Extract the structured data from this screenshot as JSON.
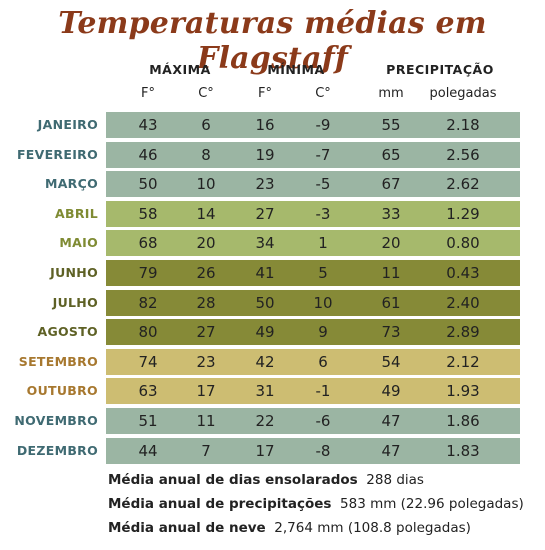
{
  "title": "Temperaturas médias em Flagstaff",
  "headers": {
    "max": "MÁXIMA",
    "min": "MÍNIMA",
    "precip": "PRECIPITAÇÃO",
    "units": [
      "F°",
      "C°",
      "F°",
      "C°",
      "mm",
      "polegadas"
    ]
  },
  "colors": {
    "blue_band": "#9bb5a3",
    "green_band": "#a6b96c",
    "olive_band": "#868a37",
    "tan_band": "#cdbd72",
    "blue_text": "#3f6a72",
    "green_text": "#7f8b33",
    "olive_text": "#5e6125",
    "tan_text": "#a7782f",
    "title": "#8b3a1a"
  },
  "rows": [
    {
      "month": "JANEIRO",
      "maxF": "43",
      "maxC": "6",
      "minF": "16",
      "minC": "-9",
      "mm": "55",
      "pol": "2.18",
      "style": "blue"
    },
    {
      "month": "FEVEREIRO",
      "maxF": "46",
      "maxC": "8",
      "minF": "19",
      "minC": "-7",
      "mm": "65",
      "pol": "2.56",
      "style": "blue"
    },
    {
      "month": "MARÇO",
      "maxF": "50",
      "maxC": "10",
      "minF": "23",
      "minC": "-5",
      "mm": "67",
      "pol": "2.62",
      "style": "blue"
    },
    {
      "month": "ABRIL",
      "maxF": "58",
      "maxC": "14",
      "minF": "27",
      "minC": "-3",
      "mm": "33",
      "pol": "1.29",
      "style": "green"
    },
    {
      "month": "MAIO",
      "maxF": "68",
      "maxC": "20",
      "minF": "34",
      "minC": "1",
      "mm": "20",
      "pol": "0.80",
      "style": "green"
    },
    {
      "month": "JUNHO",
      "maxF": "79",
      "maxC": "26",
      "minF": "41",
      "minC": "5",
      "mm": "11",
      "pol": "0.43",
      "style": "olive"
    },
    {
      "month": "JULHO",
      "maxF": "82",
      "maxC": "28",
      "minF": "50",
      "minC": "10",
      "mm": "61",
      "pol": "2.40",
      "style": "olive"
    },
    {
      "month": "AGOSTO",
      "maxF": "80",
      "maxC": "27",
      "minF": "49",
      "minC": "9",
      "mm": "73",
      "pol": "2.89",
      "style": "olive"
    },
    {
      "month": "SETEMBRO",
      "maxF": "74",
      "maxC": "23",
      "minF": "42",
      "minC": "6",
      "mm": "54",
      "pol": "2.12",
      "style": "tan"
    },
    {
      "month": "OUTUBRO",
      "maxF": "63",
      "maxC": "17",
      "minF": "31",
      "minC": "-1",
      "mm": "49",
      "pol": "1.93",
      "style": "tan"
    },
    {
      "month": "NOVEMBRO",
      "maxF": "51",
      "maxC": "11",
      "minF": "22",
      "minC": "-6",
      "mm": "47",
      "pol": "1.86",
      "style": "blue"
    },
    {
      "month": "DEZEMBRO",
      "maxF": "44",
      "maxC": "7",
      "minF": "17",
      "minC": "-8",
      "mm": "47",
      "pol": "1.83",
      "style": "blue"
    }
  ],
  "notes": [
    {
      "label": "Média anual de dias ensolarados",
      "value": "288 dias"
    },
    {
      "label": "Média anual de precipitações",
      "value": "583 mm (22.96 polegadas)"
    },
    {
      "label": "Média anual de neve",
      "value": "2,764 mm (108.8 polegadas)"
    }
  ]
}
